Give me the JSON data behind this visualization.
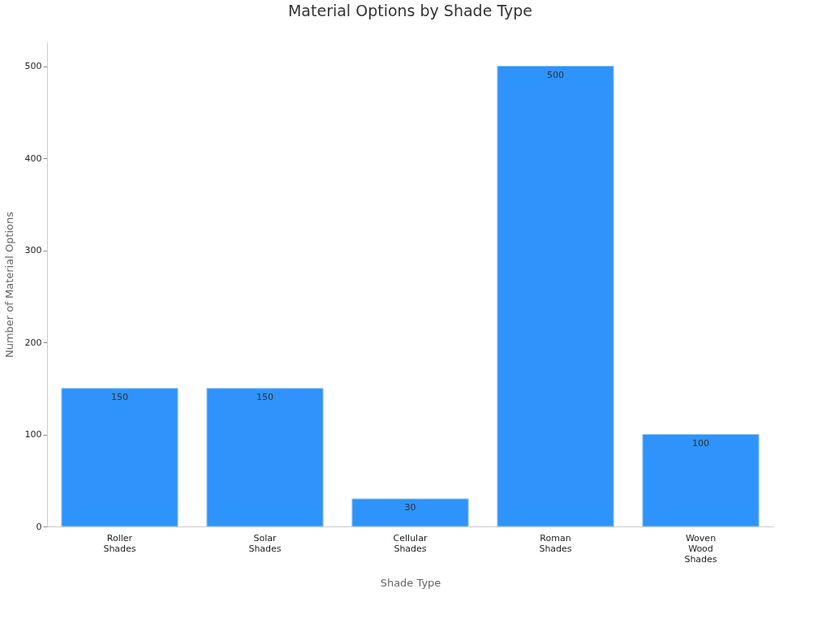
{
  "chart_data": {
    "type": "bar",
    "title": "Material Options by Shade Type",
    "xlabel": "Shade Type",
    "ylabel": "Number of Material Options",
    "categories": [
      "Roller Shades",
      "Solar Shades",
      "Cellular Shades",
      "Roman Shades",
      "Woven Wood Shades"
    ],
    "values": [
      150,
      150,
      30,
      500,
      100
    ],
    "color": "#2e93fa",
    "ylim": [
      0,
      526
    ],
    "yticks": [
      0,
      100,
      200,
      300,
      400,
      500
    ],
    "data_labels": true
  }
}
